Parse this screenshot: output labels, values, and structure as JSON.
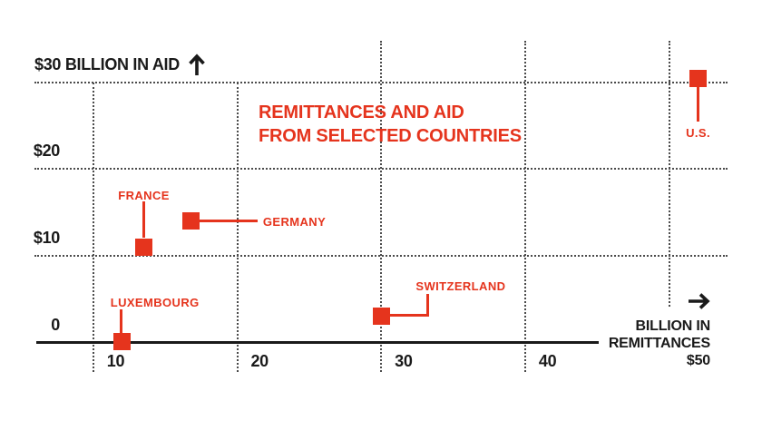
{
  "title": {
    "line1": "REMITTANCES AND AID",
    "line2": "FROM SELECTED COUNTRIES"
  },
  "y_axis": {
    "top_label": "$30 BILLION IN AID",
    "arrow_icon": "up-arrow",
    "ticks": [
      {
        "value": 20,
        "label": "$20"
      },
      {
        "value": 10,
        "label": "$10"
      },
      {
        "value": 0,
        "label": "0"
      }
    ],
    "grid_values": [
      30,
      20,
      10
    ]
  },
  "x_axis": {
    "ticks": [
      {
        "value": 10,
        "label": "10"
      },
      {
        "value": 20,
        "label": "20"
      },
      {
        "value": 30,
        "label": "30"
      },
      {
        "value": 40,
        "label": "40"
      }
    ],
    "grid_values": [
      10,
      20,
      30,
      40,
      50
    ],
    "end_label": {
      "arrow_icon": "right-arrow",
      "line1": "BILLION IN",
      "line2": "REMITTANCES",
      "line3": "$50"
    }
  },
  "colors": {
    "accent_red": "#e5341d",
    "ink": "#1a1a1a",
    "grid_dot": "#4b4b4b",
    "background": "#ffffff"
  },
  "chart_data": {
    "type": "scatter",
    "title": "REMITTANCES AND AID FROM SELECTED COUNTRIES",
    "xlabel": "BILLION IN REMITTANCES",
    "ylabel": "BILLION IN AID",
    "x_ticks": [
      10,
      20,
      30,
      40,
      50
    ],
    "y_ticks": [
      0,
      10,
      20,
      30
    ],
    "points": [
      {
        "label": "LUXEMBOURG",
        "remittances_billion": 12,
        "aid_billion": 0.1,
        "label_position": "above-left"
      },
      {
        "label": "FRANCE",
        "remittances_billion": 13.5,
        "aid_billion": 11,
        "label_position": "above-center"
      },
      {
        "label": "GERMANY",
        "remittances_billion": 16.8,
        "aid_billion": 14,
        "label_position": "right"
      },
      {
        "label": "SWITZERLAND",
        "remittances_billion": 30,
        "aid_billion": 3,
        "label_position": "above-right-elbow"
      },
      {
        "label": "U.S.",
        "remittances_billion": 52,
        "aid_billion": 30.5,
        "label_position": "below"
      }
    ]
  }
}
